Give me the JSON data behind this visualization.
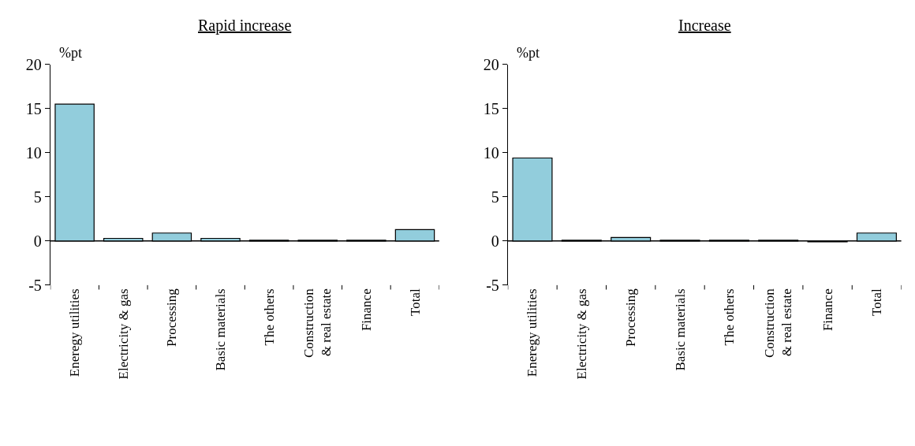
{
  "chart_data": [
    {
      "type": "bar",
      "title": "Rapid increase",
      "ylabel": "%pt",
      "categories": [
        "Eneregy utilities",
        "Electricity & gas",
        "Processing",
        "Basic materials",
        "The others",
        "Construction & real estate",
        "Finance",
        "Total"
      ],
      "values": [
        15.5,
        0.3,
        0.9,
        0.3,
        0.1,
        0.1,
        0.1,
        1.3
      ],
      "color": "#92cddc",
      "ylim": [
        -5,
        20
      ],
      "yticks": [
        -5,
        0,
        5,
        10,
        15,
        20
      ]
    },
    {
      "type": "bar",
      "title": "Increase",
      "ylabel": "%pt",
      "categories": [
        "Eneregy utilities",
        "Electricity & gas",
        "Processing",
        "Basic materials",
        "The others",
        "Construction & real estate",
        "Finance",
        "Total"
      ],
      "values": [
        9.4,
        0.1,
        0.4,
        0.1,
        0.1,
        0.1,
        -0.1,
        0.9
      ],
      "color": "#92cddc",
      "ylim": [
        -5,
        20
      ],
      "yticks": [
        -5,
        0,
        5,
        10,
        15,
        20
      ]
    }
  ]
}
